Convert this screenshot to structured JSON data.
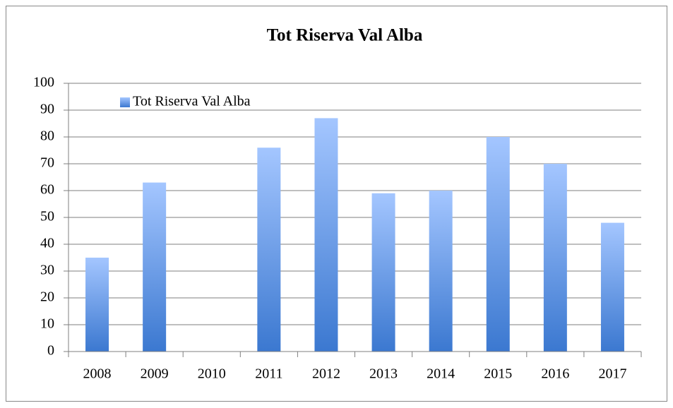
{
  "chart_data": {
    "type": "bar",
    "title": "Tot Riserva Val Alba",
    "categories": [
      "2008",
      "2009",
      "2010",
      "2011",
      "2012",
      "2013",
      "2014",
      "2015",
      "2016",
      "2017"
    ],
    "series": [
      {
        "name": "Tot Riserva Val Alba",
        "color": "#4a86d8",
        "values": [
          35,
          63,
          null,
          76,
          87,
          59,
          60,
          80,
          70,
          48
        ]
      }
    ],
    "ylim": [
      0,
      100
    ],
    "yticks": [
      0,
      10,
      20,
      30,
      40,
      50,
      60,
      70,
      80,
      90,
      100
    ],
    "grid": true,
    "legend": "top-left"
  }
}
